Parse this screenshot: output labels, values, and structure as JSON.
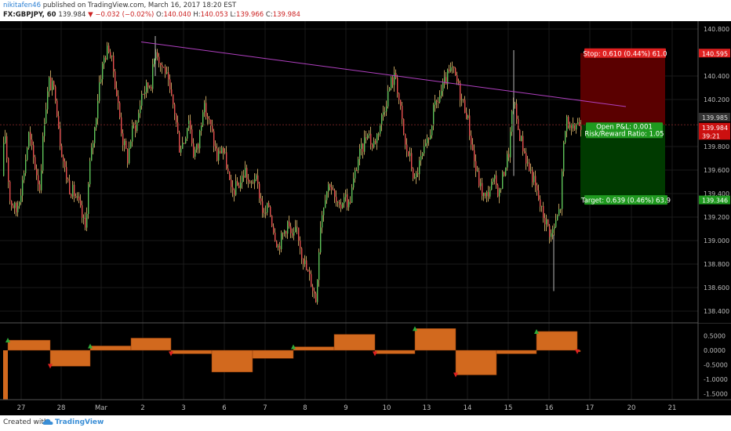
{
  "header": {
    "author": "nikitafen46",
    "published": "published on TradingView.com, March 16, 2017 18:20 EST",
    "symbol": "FX:GBPJPY, 60",
    "price": "139.984",
    "arrow": "▼",
    "change": "−0.032 (−0.02%)",
    "open_label": "O:",
    "open": "140.040",
    "high_label": "H:",
    "high": "140.053",
    "low_label": "L:",
    "low": "139.966",
    "close_label": "C:",
    "close": "139.984"
  },
  "price_axis": {
    "ticks": [
      "140.800",
      "140.400",
      "140.200",
      "139.800",
      "139.600",
      "139.400",
      "139.200",
      "139.000",
      "138.800",
      "138.600",
      "138.400"
    ],
    "tick_values": [
      140.8,
      140.4,
      140.2,
      139.8,
      139.6,
      139.4,
      139.2,
      139.0,
      138.8,
      138.6,
      138.4
    ],
    "badge_stop": "140.595",
    "badge_upper": "139.985",
    "badge_last": "139.984",
    "badge_timer": "39:21",
    "badge_target": "139.346"
  },
  "osc_axis": {
    "ticks": [
      "0.5000",
      "0.0000",
      "-0.5000",
      "-1.0000",
      "-1.5000"
    ],
    "tick_values": [
      0.5,
      0,
      -0.5,
      -1.0,
      -1.5
    ]
  },
  "time_axis": {
    "labels": [
      "27",
      "28",
      "Mar",
      "2",
      "3",
      "6",
      "7",
      "8",
      "9",
      "10",
      "13",
      "14",
      "15",
      "16",
      "17",
      "20",
      "21"
    ]
  },
  "position": {
    "stop_label": "Stop: 0.610 (0.44%) 61.0",
    "open_pl": "Open P&L: 0.001",
    "rr": "Risk/Reward Ratio: 1.05",
    "target_label": "Target: 0.639 (0.46%) 63.9",
    "entry": 139.985,
    "stop": 140.595,
    "target": 139.346
  },
  "trendline": {
    "start": 140.69,
    "end": 140.14
  },
  "colors": {
    "up": "#5fc45a",
    "down": "#e85050",
    "trendline": "#b040c0",
    "osc": "#d2691e",
    "stop_fill": "#5a0000",
    "target_fill": "#003a00"
  },
  "chart_data": {
    "type": "candlestick",
    "series_path": [
      [
        0,
        139.55
      ],
      [
        6,
        139.9
      ],
      [
        12,
        139.35
      ],
      [
        20,
        139.25
      ],
      [
        28,
        139.5
      ],
      [
        36,
        139.9
      ],
      [
        42,
        139.7
      ],
      [
        50,
        139.45
      ],
      [
        56,
        140.05
      ],
      [
        62,
        140.35
      ],
      [
        70,
        140.25
      ],
      [
        76,
        139.85
      ],
      [
        82,
        139.6
      ],
      [
        88,
        139.45
      ],
      [
        94,
        139.4
      ],
      [
        100,
        139.3
      ],
      [
        108,
        139.1
      ],
      [
        114,
        139.65
      ],
      [
        120,
        139.95
      ],
      [
        126,
        140.35
      ],
      [
        132,
        140.55
      ],
      [
        138,
        140.65
      ],
      [
        144,
        140.45
      ],
      [
        150,
        140.15
      ],
      [
        156,
        139.85
      ],
      [
        162,
        139.7
      ],
      [
        168,
        139.95
      ],
      [
        174,
        140.0
      ],
      [
        180,
        140.25
      ],
      [
        186,
        140.3
      ],
      [
        192,
        140.35
      ],
      [
        198,
        140.65
      ],
      [
        204,
        140.5
      ],
      [
        210,
        140.45
      ],
      [
        216,
        140.25
      ],
      [
        222,
        140.1
      ],
      [
        228,
        139.8
      ],
      [
        234,
        139.85
      ],
      [
        240,
        140.05
      ],
      [
        246,
        139.75
      ],
      [
        252,
        139.8
      ],
      [
        258,
        140.15
      ],
      [
        264,
        140.05
      ],
      [
        270,
        139.9
      ],
      [
        276,
        139.7
      ],
      [
        282,
        139.8
      ],
      [
        288,
        139.65
      ],
      [
        294,
        139.4
      ],
      [
        300,
        139.45
      ],
      [
        306,
        139.5
      ],
      [
        312,
        139.6
      ],
      [
        318,
        139.45
      ],
      [
        324,
        139.55
      ],
      [
        330,
        139.4
      ],
      [
        336,
        139.2
      ],
      [
        342,
        139.3
      ],
      [
        348,
        139.1
      ],
      [
        354,
        138.95
      ],
      [
        360,
        139.05
      ],
      [
        366,
        139.15
      ],
      [
        372,
        139.0
      ],
      [
        378,
        139.1
      ],
      [
        384,
        138.9
      ],
      [
        390,
        138.75
      ],
      [
        396,
        138.65
      ],
      [
        402,
        138.5
      ],
      [
        408,
        139.15
      ],
      [
        414,
        139.4
      ],
      [
        420,
        139.5
      ],
      [
        426,
        139.35
      ],
      [
        432,
        139.25
      ],
      [
        438,
        139.4
      ],
      [
        444,
        139.3
      ],
      [
        450,
        139.5
      ],
      [
        456,
        139.7
      ],
      [
        462,
        139.8
      ],
      [
        468,
        139.95
      ],
      [
        474,
        139.8
      ],
      [
        480,
        139.9
      ],
      [
        486,
        140.05
      ],
      [
        492,
        140.2
      ],
      [
        498,
        140.35
      ],
      [
        504,
        140.4
      ],
      [
        510,
        140.1
      ],
      [
        516,
        139.8
      ],
      [
        522,
        139.7
      ],
      [
        528,
        139.5
      ],
      [
        534,
        139.65
      ],
      [
        540,
        139.75
      ],
      [
        546,
        139.85
      ],
      [
        552,
        140.1
      ],
      [
        558,
        140.2
      ],
      [
        564,
        140.3
      ],
      [
        570,
        140.4
      ],
      [
        576,
        140.45
      ],
      [
        582,
        140.35
      ],
      [
        588,
        140.2
      ],
      [
        594,
        140.1
      ],
      [
        600,
        139.85
      ],
      [
        606,
        139.6
      ],
      [
        612,
        139.45
      ],
      [
        618,
        139.35
      ],
      [
        624,
        139.45
      ],
      [
        630,
        139.5
      ],
      [
        636,
        139.4
      ],
      [
        642,
        139.6
      ],
      [
        648,
        139.75
      ],
      [
        654,
        140.2
      ],
      [
        660,
        139.95
      ],
      [
        666,
        139.8
      ],
      [
        672,
        139.65
      ],
      [
        678,
        139.55
      ],
      [
        684,
        139.4
      ],
      [
        690,
        139.25
      ],
      [
        696,
        139.15
      ],
      [
        702,
        139.05
      ],
      [
        708,
        139.15
      ],
      [
        714,
        139.3
      ],
      [
        718,
        139.8
      ],
      [
        722,
        140.05
      ],
      [
        728,
        139.9
      ],
      [
        734,
        140.0
      ],
      [
        740,
        140.0
      ]
    ],
    "oscillator_steps": [
      [
        10,
        64,
        0.35
      ],
      [
        64,
        115,
        -0.55
      ],
      [
        115,
        167,
        0.15
      ],
      [
        167,
        218,
        0.42
      ],
      [
        218,
        270,
        -0.12
      ],
      [
        270,
        322,
        -0.75
      ],
      [
        322,
        374,
        -0.28
      ],
      [
        374,
        426,
        0.12
      ],
      [
        426,
        478,
        0.55
      ],
      [
        478,
        529,
        -0.12
      ],
      [
        529,
        581,
        0.75
      ],
      [
        581,
        633,
        -0.85
      ],
      [
        633,
        684,
        -0.12
      ],
      [
        684,
        736,
        0.65
      ],
      [
        736,
        740,
        -0.05
      ]
    ],
    "osc_markers": [
      [
        10,
        "up"
      ],
      [
        64,
        "down"
      ],
      [
        115,
        "up"
      ],
      [
        218,
        "down"
      ],
      [
        374,
        "up"
      ],
      [
        478,
        "down"
      ],
      [
        529,
        "up"
      ],
      [
        581,
        "down"
      ],
      [
        684,
        "up"
      ],
      [
        736,
        "down"
      ]
    ]
  }
}
